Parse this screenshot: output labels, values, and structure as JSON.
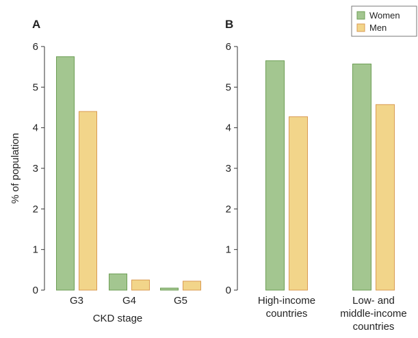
{
  "chart_data": {
    "type": "bar",
    "ylabel": "% of population",
    "ylim": [
      0,
      6
    ],
    "yticks": [
      0,
      1,
      2,
      3,
      4,
      5,
      6
    ],
    "legend": {
      "position": "top-right",
      "entries": [
        {
          "name": "Women",
          "color": "#a3c690",
          "stroke": "#6d9e55"
        },
        {
          "name": "Men",
          "color": "#f2d58a",
          "stroke": "#d99a52"
        }
      ]
    },
    "panels": [
      {
        "label": "A",
        "xlabel": "CKD stage",
        "categories": [
          [
            "G3"
          ],
          [
            "G4"
          ],
          [
            "G5"
          ]
        ],
        "series": [
          {
            "name": "Women",
            "values": [
              5.75,
              0.4,
              0.05
            ]
          },
          {
            "name": "Men",
            "values": [
              4.4,
              0.25,
              0.22
            ]
          }
        ]
      },
      {
        "label": "B",
        "xlabel": "",
        "categories": [
          [
            "High-income",
            "countries"
          ],
          [
            "Low- and",
            "middle-income",
            "countries"
          ]
        ],
        "series": [
          {
            "name": "Women",
            "values": [
              5.65,
              5.57
            ]
          },
          {
            "name": "Men",
            "values": [
              4.27,
              4.57
            ]
          }
        ]
      }
    ]
  }
}
